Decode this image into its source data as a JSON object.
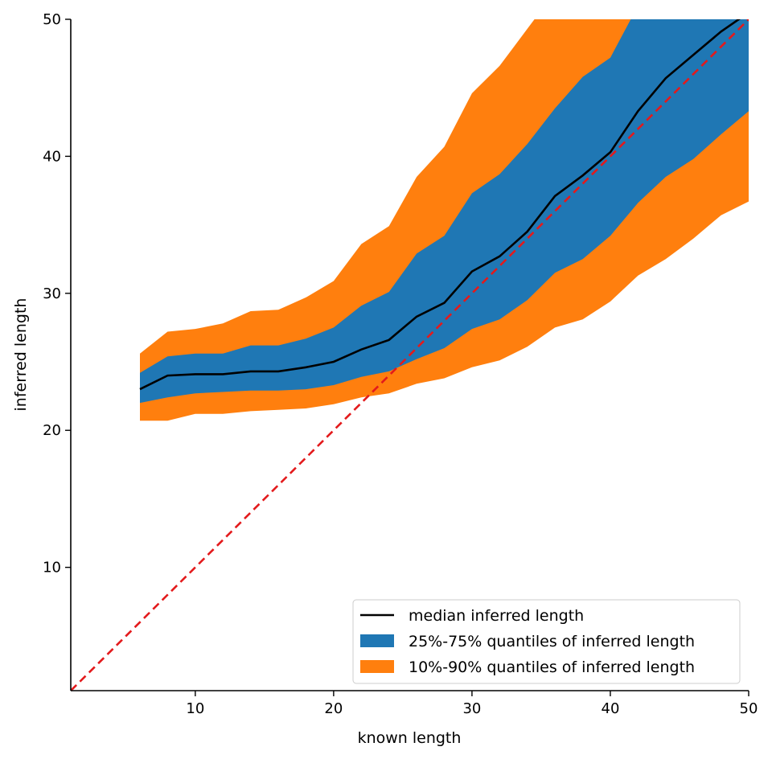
{
  "chart_data": {
    "type": "area",
    "title": "",
    "xlabel": "known length",
    "ylabel": "inferred length",
    "xlim": [
      1,
      50
    ],
    "ylim": [
      1,
      50
    ],
    "xticks": [
      10,
      20,
      30,
      40,
      50
    ],
    "yticks": [
      10,
      20,
      30,
      40,
      50
    ],
    "grid": false,
    "legend_position": "lower-right",
    "x": [
      6,
      8,
      10,
      12,
      14,
      16,
      18,
      20,
      22,
      24,
      26,
      28,
      30,
      32,
      34,
      36,
      38,
      40,
      42,
      44,
      46,
      48,
      50
    ],
    "series": [
      {
        "name": "median inferred length",
        "kind": "line",
        "color": "#000000",
        "values": [
          23.0,
          24.0,
          24.1,
          24.1,
          24.3,
          24.3,
          24.6,
          25.0,
          25.9,
          26.6,
          28.3,
          29.3,
          31.6,
          32.7,
          34.5,
          37.1,
          38.6,
          40.3,
          43.3,
          45.7,
          47.4,
          49.1,
          50.5
        ]
      },
      {
        "name": "25%-75% quantiles of inferred length",
        "kind": "band",
        "color": "#1f77b4",
        "lower": [
          22.0,
          22.4,
          22.7,
          22.8,
          22.9,
          22.9,
          23.0,
          23.3,
          23.9,
          24.3,
          25.2,
          26.0,
          27.4,
          28.1,
          29.5,
          31.5,
          32.5,
          34.2,
          36.6,
          38.5,
          39.8,
          41.6,
          43.3
        ],
        "upper": [
          24.2,
          25.4,
          25.6,
          25.6,
          26.2,
          26.2,
          26.7,
          27.5,
          29.1,
          30.1,
          32.9,
          34.2,
          37.3,
          38.7,
          40.9,
          43.5,
          45.8,
          47.2,
          51.0,
          52.0,
          52.0,
          52.0,
          52.0
        ]
      },
      {
        "name": "10%-90% quantiles of inferred length",
        "kind": "band",
        "color": "#ff7f0e",
        "lower": [
          20.7,
          20.7,
          21.2,
          21.2,
          21.4,
          21.5,
          21.6,
          21.9,
          22.4,
          22.7,
          23.4,
          23.8,
          24.6,
          25.1,
          26.1,
          27.5,
          28.1,
          29.4,
          31.3,
          32.5,
          34.0,
          35.7,
          36.7
        ],
        "upper": [
          25.6,
          27.2,
          27.4,
          27.8,
          28.7,
          28.8,
          29.7,
          30.9,
          33.6,
          34.9,
          38.5,
          40.7,
          44.6,
          46.6,
          49.3,
          52.0,
          52.0,
          52.0,
          52.0,
          52.0,
          52.0,
          52.0,
          52.0
        ]
      },
      {
        "name": "",
        "kind": "reference-line",
        "style": "dashed",
        "color": "#e31a1c",
        "x": [
          1,
          50
        ],
        "values": [
          1,
          50
        ]
      }
    ]
  }
}
